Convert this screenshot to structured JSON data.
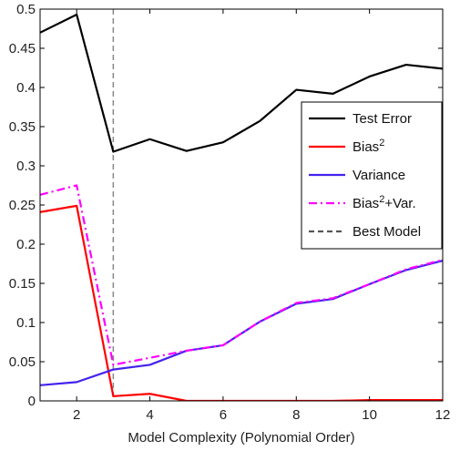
{
  "chart_data": {
    "type": "line",
    "title": "",
    "xlabel": "Model Complexity (Polynomial Order)",
    "ylabel": "",
    "xlim": [
      1,
      12
    ],
    "ylim": [
      0,
      0.5
    ],
    "xticks": [
      2,
      4,
      6,
      8,
      10,
      12
    ],
    "yticks": [
      0,
      0.05,
      0.1,
      0.15,
      0.2,
      0.25,
      0.3,
      0.35,
      0.4,
      0.45,
      0.5
    ],
    "x": [
      1,
      2,
      3,
      4,
      5,
      6,
      7,
      8,
      9,
      10,
      11,
      12
    ],
    "series": [
      {
        "name": "Test Error",
        "legend_main": "Test Error",
        "legend_sup": "",
        "legend_tail": "",
        "style": "solid",
        "color": "#000000",
        "values": [
          0.47,
          0.493,
          0.318,
          0.334,
          0.319,
          0.33,
          0.357,
          0.397,
          0.392,
          0.414,
          0.429,
          0.424
        ]
      },
      {
        "name": "Bias^2",
        "legend_main": "Bias",
        "legend_sup": "2",
        "legend_tail": "",
        "style": "solid",
        "color": "#ff0000",
        "values": [
          0.241,
          0.249,
          0.006,
          0.009,
          0.0,
          0.0,
          0.0,
          0.0,
          0.0,
          0.001,
          0.001,
          0.001
        ]
      },
      {
        "name": "Variance",
        "legend_main": "Variance",
        "legend_sup": "",
        "legend_tail": "",
        "style": "solid",
        "color": "#4422ee",
        "values": [
          0.02,
          0.024,
          0.04,
          0.046,
          0.064,
          0.071,
          0.101,
          0.124,
          0.13,
          0.149,
          0.167,
          0.179
        ]
      },
      {
        "name": "Bias^2+Var.",
        "legend_main": "Bias",
        "legend_sup": "2",
        "legend_tail": "+Var.",
        "style": "dashdot",
        "color": "#ff00ff",
        "values": [
          0.263,
          0.275,
          0.046,
          0.055,
          0.064,
          0.071,
          0.101,
          0.125,
          0.131,
          0.149,
          0.168,
          0.18
        ]
      }
    ],
    "vline": {
      "name": "Best Model",
      "x": 3,
      "style": "dashed",
      "color": "#888888"
    },
    "legend": {
      "placement": "center-right"
    },
    "grid": false
  }
}
